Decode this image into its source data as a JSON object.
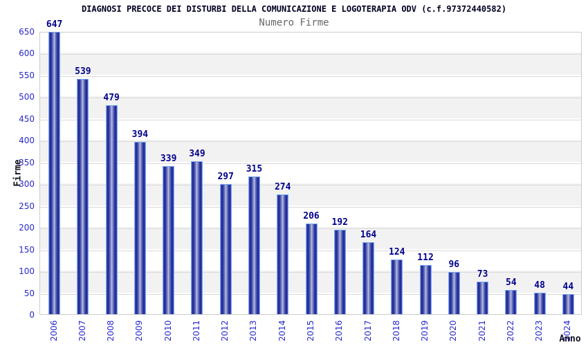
{
  "chart_data": {
    "type": "bar",
    "title": "DIAGNOSI PRECOCE DEI DISTURBI DELLA COMUNICAZIONE E LOGOTERAPIA ODV (c.f.97372440582)",
    "subtitle": "Numero Firme",
    "xlabel": "Anno",
    "ylabel": "Firme",
    "categories": [
      "2006",
      "2007",
      "2008",
      "2009",
      "2010",
      "2011",
      "2012",
      "2013",
      "2014",
      "2015",
      "2016",
      "2017",
      "2018",
      "2019",
      "2020",
      "2021",
      "2022",
      "2023",
      "2024"
    ],
    "values": [
      647,
      539,
      479,
      394,
      339,
      349,
      297,
      315,
      274,
      206,
      192,
      164,
      124,
      112,
      96,
      73,
      54,
      48,
      44
    ],
    "ylim": [
      0,
      650
    ],
    "ytick_step": 50,
    "legend": "none",
    "grid": "horizontal-bands-alternating",
    "colors": {
      "bar_dark": "#1b2590",
      "bar_light": "#c3c8e4",
      "bar_outline": "#78a7f5",
      "axis_text_blue": "#2929cc",
      "value_label_navy": "#00008b",
      "band_gray": "#f2f2f2",
      "grid_line": "#d9d9d9",
      "plot_border": "#cccccc",
      "title_color": "#000022",
      "subtitle_gray": "#666666"
    }
  }
}
